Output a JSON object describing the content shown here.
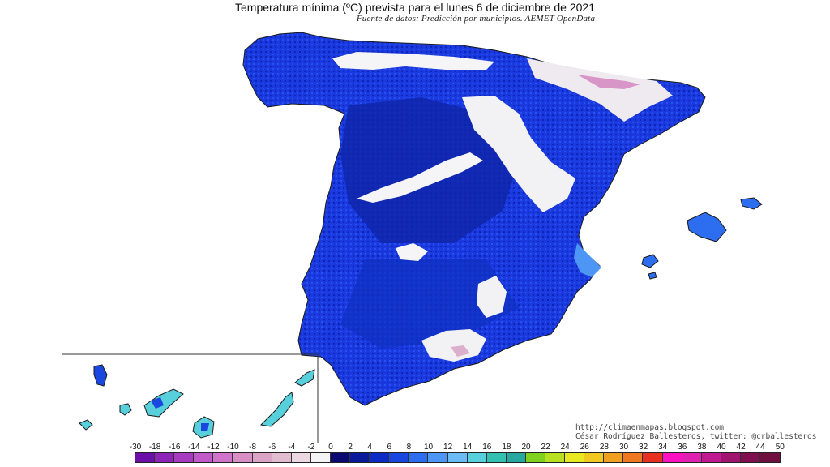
{
  "map": {
    "title": "Temperatura mínima (ºC) prevista para el lunes 6 de diciembre de 2021",
    "subtitle": "Fuente de datos: Predicción por municipios. AEMET OpenData",
    "credit_url": "http://climaenmapas.blogspot.com",
    "credit_author": "César Rodríguez Ballesteros, twitter: @crballesteros"
  },
  "legend": {
    "labels": [
      "-30",
      "-18",
      "-16",
      "-14",
      "-12",
      "-10",
      "-8",
      "-6",
      "-4",
      "-2",
      "0",
      "2",
      "4",
      "6",
      "8",
      "10",
      "12",
      "14",
      "16",
      "18",
      "20",
      "22",
      "24",
      "26",
      "28",
      "30",
      "32",
      "34",
      "36",
      "38",
      "40",
      "42",
      "44",
      "50"
    ],
    "colors": [
      "#6a0fa8",
      "#8e24b6",
      "#a83cc0",
      "#c05ac8",
      "#cf74c8",
      "#d88fc6",
      "#dba4c6",
      "#e2bcd0",
      "#ebd8e0",
      "#f4f4f4",
      "#0a0a70",
      "#0b1a9a",
      "#0d2cc4",
      "#1947e0",
      "#2d6ef0",
      "#4e96f5",
      "#6bbcf5",
      "#58d0dc",
      "#33c0b0",
      "#26a8a0",
      "#80d020",
      "#b8e020",
      "#e8e820",
      "#f0c820",
      "#f0a020",
      "#f07820",
      "#e83020",
      "#ff10c0",
      "#e020b0",
      "#c01890",
      "#a01470",
      "#801050",
      "#701040"
    ]
  }
}
